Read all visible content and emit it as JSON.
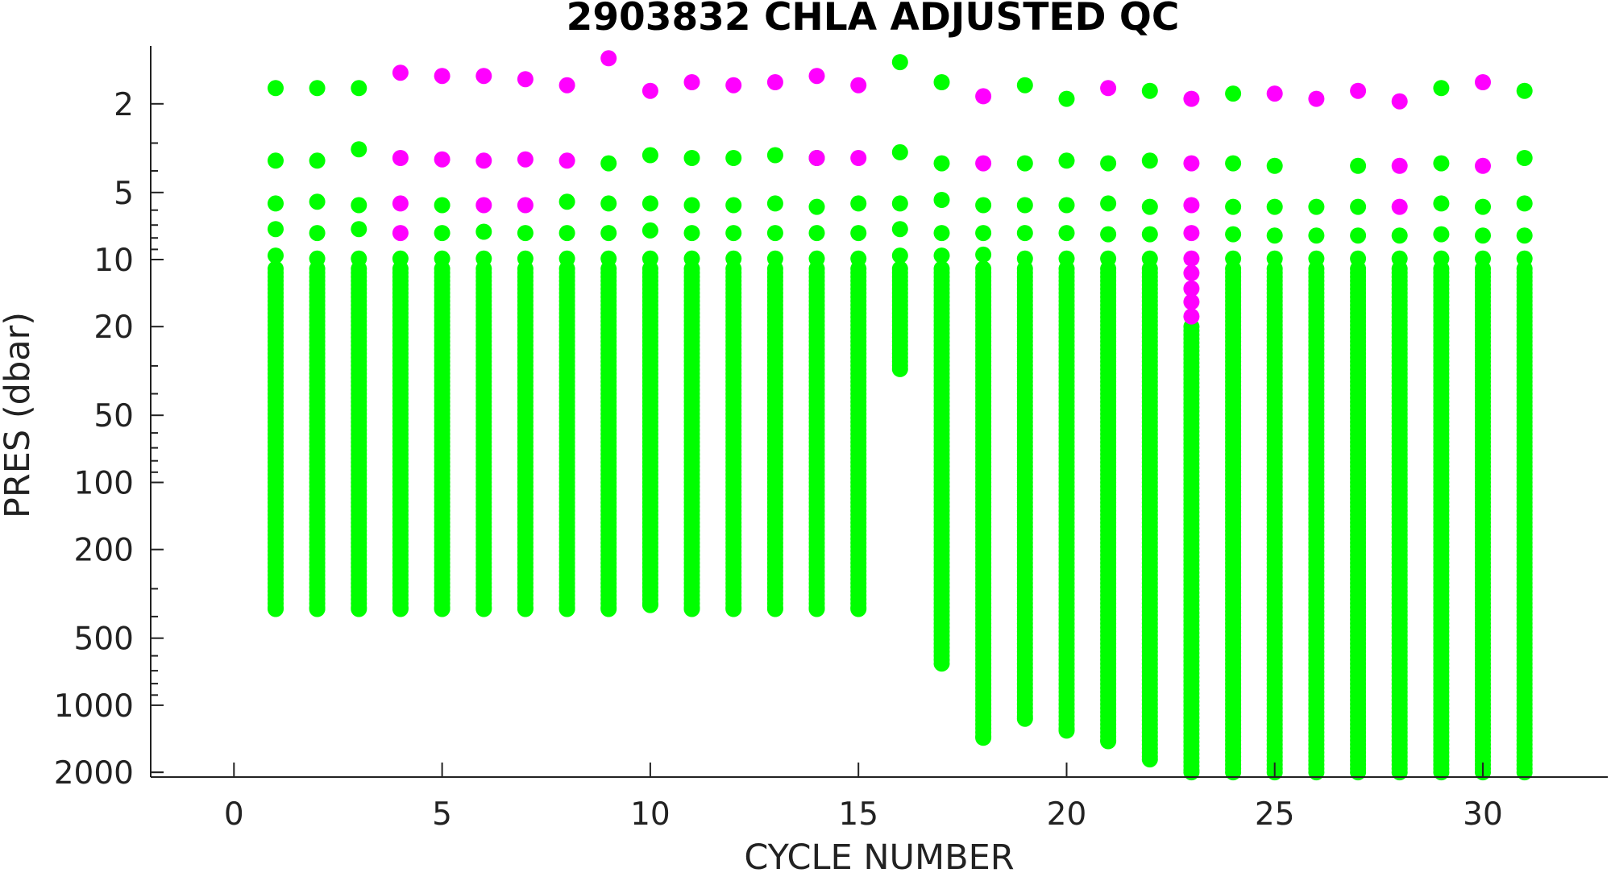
{
  "chart_data": {
    "type": "scatter",
    "title": "2903832  CHLA ADJUSTED QC",
    "xlabel": "CYCLE NUMBER",
    "ylabel": "PRES (dbar)",
    "xlim": [
      -2,
      33
    ],
    "ylim": [
      1.1,
      2100
    ],
    "y_scale": "log",
    "y_reversed": true,
    "grid": false,
    "x_ticks": [
      0,
      5,
      10,
      15,
      20,
      25,
      30
    ],
    "x_tick_labels": [
      "0",
      "5",
      "10",
      "15",
      "20",
      "25",
      "30"
    ],
    "y_ticks": [
      2,
      5,
      10,
      20,
      50,
      100,
      200,
      500,
      1000,
      2000
    ],
    "y_tick_labels": [
      "2",
      "5",
      "10",
      "20",
      "50",
      "100",
      "200",
      "500",
      "1000",
      "2000"
    ],
    "colors": {
      "good": "#00ff00",
      "flagged": "#ff00ff",
      "axis": "#222222"
    },
    "series": [
      {
        "color_key": "good",
        "profiles": [
          {
            "cycle": 1,
            "top": [
              1.7,
              3.6,
              5.6,
              7.3,
              9.6
            ],
            "continuous_from": 11,
            "bottom": 370
          },
          {
            "cycle": 2,
            "top": [
              1.7,
              3.6,
              5.5,
              7.6,
              9.9
            ],
            "continuous_from": 11,
            "bottom": 370
          },
          {
            "cycle": 3,
            "top": [
              1.7,
              3.2,
              5.7,
              7.3,
              9.9
            ],
            "continuous_from": 11,
            "bottom": 370
          },
          {
            "cycle": 4,
            "top": [
              9.9
            ],
            "continuous_from": 11,
            "bottom": 370
          },
          {
            "cycle": 5,
            "top": [
              5.7,
              7.6,
              9.9
            ],
            "continuous_from": 11,
            "bottom": 370
          },
          {
            "cycle": 6,
            "top": [
              7.5,
              9.9
            ],
            "continuous_from": 11,
            "bottom": 370
          },
          {
            "cycle": 7,
            "top": [
              7.6,
              9.9
            ],
            "continuous_from": 11,
            "bottom": 370
          },
          {
            "cycle": 8,
            "top": [
              5.5,
              7.6,
              9.9
            ],
            "continuous_from": 11,
            "bottom": 370
          },
          {
            "cycle": 9,
            "top": [
              3.7,
              5.6,
              7.6,
              9.9
            ],
            "continuous_from": 11,
            "bottom": 370
          },
          {
            "cycle": 10,
            "top": [
              3.4,
              5.6,
              7.4,
              9.9
            ],
            "continuous_from": 11,
            "bottom": 355
          },
          {
            "cycle": 11,
            "top": [
              3.5,
              5.7,
              7.6,
              9.9
            ],
            "continuous_from": 11,
            "bottom": 370
          },
          {
            "cycle": 12,
            "top": [
              3.5,
              5.7,
              7.6,
              9.9
            ],
            "continuous_from": 11,
            "bottom": 370
          },
          {
            "cycle": 13,
            "top": [
              3.4,
              5.6,
              7.6,
              9.9
            ],
            "continuous_from": 11,
            "bottom": 370
          },
          {
            "cycle": 14,
            "top": [
              3.5,
              5.8,
              7.6,
              9.9
            ],
            "continuous_from": 11,
            "bottom": 370
          },
          {
            "cycle": 15,
            "top": [
              5.6,
              7.6,
              9.9
            ],
            "continuous_from": 11,
            "bottom": 370
          },
          {
            "cycle": 16,
            "top": [
              1.3,
              3.3,
              5.6,
              7.3,
              9.6
            ],
            "continuous_from": 11,
            "bottom": 31
          },
          {
            "cycle": 17,
            "top": [
              1.6,
              3.7,
              5.4,
              7.6,
              9.6
            ],
            "continuous_from": 11,
            "bottom": 650
          },
          {
            "cycle": 18,
            "top": [
              5.7,
              7.6,
              9.5
            ],
            "continuous_from": 11,
            "bottom": 1400
          },
          {
            "cycle": 19,
            "top": [
              1.65,
              3.7,
              5.7,
              7.6,
              9.9
            ],
            "continuous_from": 11,
            "bottom": 1150
          },
          {
            "cycle": 20,
            "top": [
              1.9,
              3.6,
              5.7,
              7.6,
              9.9
            ],
            "continuous_from": 11,
            "bottom": 1300
          },
          {
            "cycle": 21,
            "top": [
              3.7,
              5.6,
              7.7,
              9.9
            ],
            "continuous_from": 11,
            "bottom": 1450
          },
          {
            "cycle": 22,
            "top": [
              1.75,
              3.6,
              5.8,
              7.7,
              9.9
            ],
            "continuous_from": 11,
            "bottom": 1750
          },
          {
            "cycle": 23,
            "top": [],
            "continuous_from": 20,
            "bottom": 2000
          },
          {
            "cycle": 24,
            "top": [
              1.8,
              3.7,
              5.8,
              7.7,
              9.9
            ],
            "continuous_from": 11,
            "bottom": 2000
          },
          {
            "cycle": 25,
            "top": [
              3.8,
              5.8,
              7.8,
              9.9
            ],
            "continuous_from": 11,
            "bottom": 2000
          },
          {
            "cycle": 26,
            "top": [
              5.8,
              7.8,
              9.9
            ],
            "continuous_from": 11,
            "bottom": 2000
          },
          {
            "cycle": 27,
            "top": [
              3.8,
              5.8,
              7.8,
              9.9
            ],
            "continuous_from": 11,
            "bottom": 2000
          },
          {
            "cycle": 28,
            "top": [
              7.8,
              9.9
            ],
            "continuous_from": 11,
            "bottom": 2000
          },
          {
            "cycle": 29,
            "top": [
              1.7,
              3.7,
              5.6,
              7.7,
              9.9
            ],
            "continuous_from": 11,
            "bottom": 2000
          },
          {
            "cycle": 30,
            "top": [
              5.8,
              7.8,
              9.9
            ],
            "continuous_from": 11,
            "bottom": 2000
          },
          {
            "cycle": 31,
            "top": [
              1.75,
              3.5,
              5.6,
              7.8,
              9.9
            ],
            "continuous_from": 11,
            "bottom": 2000
          }
        ]
      },
      {
        "color_key": "flagged",
        "points": [
          [
            4,
            1.45
          ],
          [
            4,
            3.5
          ],
          [
            4,
            5.6
          ],
          [
            4,
            7.6
          ],
          [
            5,
            1.5
          ],
          [
            5,
            3.55
          ],
          [
            6,
            1.5
          ],
          [
            6,
            3.6
          ],
          [
            6,
            5.7
          ],
          [
            7,
            1.55
          ],
          [
            7,
            3.55
          ],
          [
            7,
            5.7
          ],
          [
            8,
            1.65
          ],
          [
            8,
            3.6
          ],
          [
            9,
            1.25
          ],
          [
            10,
            1.75
          ],
          [
            11,
            1.6
          ],
          [
            12,
            1.65
          ],
          [
            13,
            1.6
          ],
          [
            14,
            1.5
          ],
          [
            14,
            3.5
          ],
          [
            15,
            1.65
          ],
          [
            15,
            3.5
          ],
          [
            18,
            1.85
          ],
          [
            18,
            3.7
          ],
          [
            21,
            1.7
          ],
          [
            23,
            1.9
          ],
          [
            23,
            3.7
          ],
          [
            23,
            5.7
          ],
          [
            23,
            7.6
          ],
          [
            23,
            9.9
          ],
          [
            23,
            11.5
          ],
          [
            23,
            13.5
          ],
          [
            23,
            15.5
          ],
          [
            23,
            18
          ],
          [
            25,
            1.8
          ],
          [
            26,
            1.9
          ],
          [
            27,
            1.75
          ],
          [
            28,
            1.95
          ],
          [
            28,
            3.8
          ],
          [
            28,
            5.8
          ],
          [
            30,
            1.6
          ],
          [
            30,
            3.8
          ]
        ]
      }
    ]
  }
}
